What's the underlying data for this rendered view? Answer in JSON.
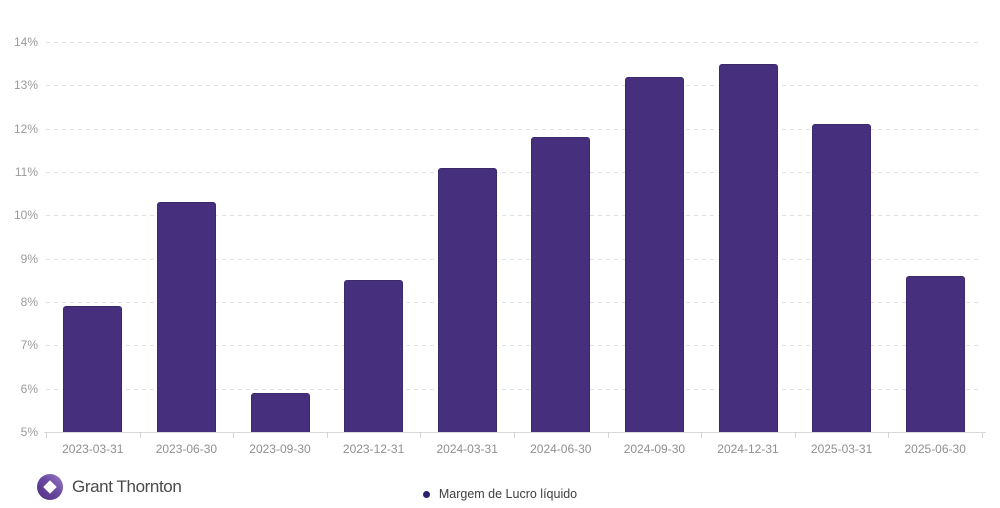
{
  "page": {
    "background": "#ffffff"
  },
  "chart_data": {
    "type": "bar",
    "title": "",
    "xlabel": "",
    "ylabel": "",
    "categories": [
      "2023-03-31",
      "2023-06-30",
      "2023-09-30",
      "2023-12-31",
      "2024-03-31",
      "2024-06-30",
      "2024-09-30",
      "2024-12-31",
      "2025-03-31",
      "2025-06-30"
    ],
    "series": [
      {
        "name": "Margem de Lucro líquido",
        "values": [
          7.9,
          10.3,
          5.9,
          8.5,
          11.1,
          11.8,
          13.2,
          13.5,
          12.1,
          8.6
        ]
      }
    ],
    "ylim": [
      5,
      14.75
    ],
    "ytick_values": [
      5,
      6,
      7,
      8,
      9,
      10,
      11,
      12,
      13,
      14
    ],
    "ytick_labels": [
      "5%",
      "6%",
      "7%",
      "8%",
      "9%",
      "10%",
      "11%",
      "12%",
      "13%",
      "14%"
    ],
    "grid": "horizontal-dashed",
    "legend_position": "bottom-center",
    "bar_color": "#46307E",
    "bar_border_color": "#3A296D"
  },
  "legend": {
    "items": [
      {
        "label": "Margem de Lucro líquido",
        "marker_color": "#2A2270"
      }
    ]
  },
  "footer": {
    "logo": {
      "brand": "Grant Thornton",
      "icon": "grant-thornton-swirl-icon",
      "icon_color_dark": "#4F2D7F",
      "icon_color_light": "#9B7DC8",
      "text_color": "#4A4A4C"
    }
  }
}
